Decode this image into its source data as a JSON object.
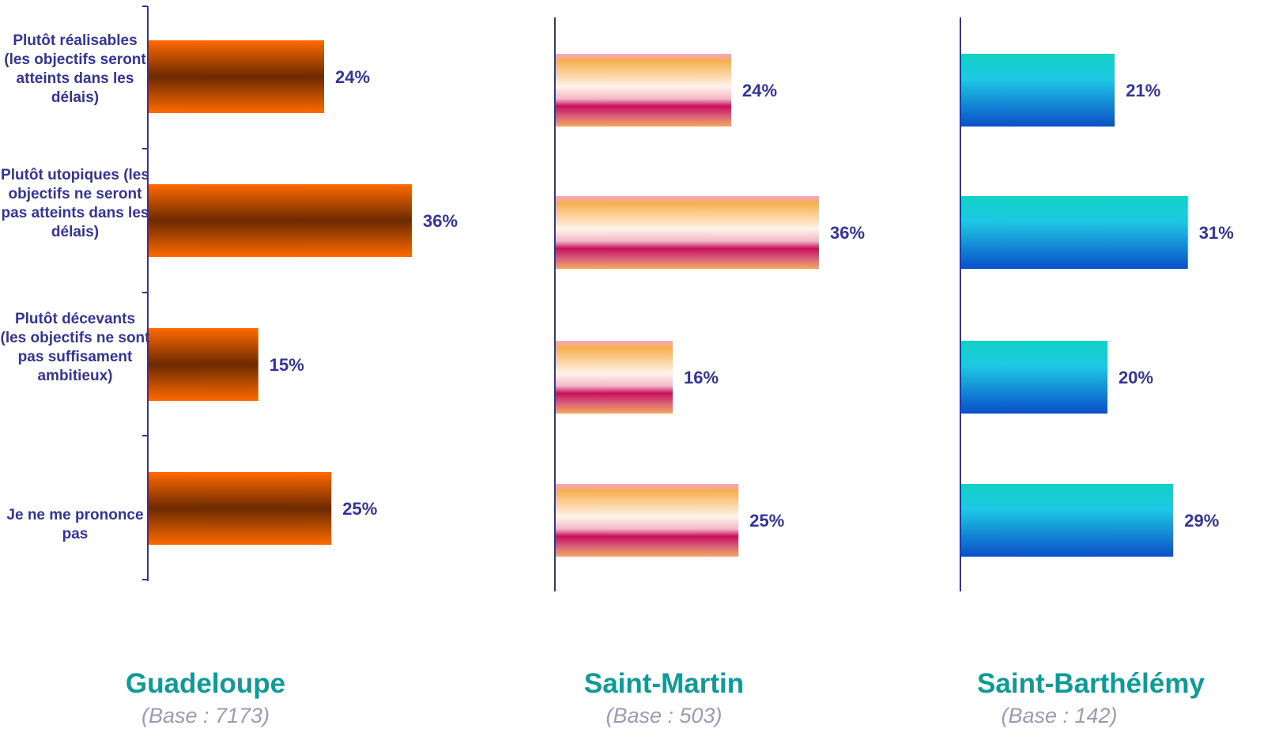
{
  "chart_data": [
    {
      "type": "bar",
      "orientation": "horizontal",
      "title": "Guadeloupe",
      "subtitle": "(Base : 7173)",
      "categories": [
        "Plutôt réalisables (les objectifs seront atteints dans les délais)",
        "Plutôt utopiques (les objectifs ne seront pas atteints dans les délais)",
        "Plutôt décevants (les objectifs ne sont pas suffisament ambitieux)",
        "Je ne me prononce pas"
      ],
      "values": [
        24,
        36,
        15,
        25
      ],
      "value_labels": [
        "24%",
        "36%",
        "15%",
        "25%"
      ],
      "xlim": [
        0,
        100
      ],
      "grid": false,
      "bar_colors": [
        "#ff6a00",
        "#6b2a00"
      ]
    },
    {
      "type": "bar",
      "orientation": "horizontal",
      "title": "Saint-Martin",
      "subtitle": "(Base : 503)",
      "values": [
        24,
        36,
        16,
        25
      ],
      "value_labels": [
        "24%",
        "36%",
        "16%",
        "25%"
      ],
      "xlim": [
        0,
        100
      ],
      "grid": false,
      "bar_colors": [
        "#f4a6c6",
        "#f7b04e",
        "#fff3ea",
        "#c8105a"
      ]
    },
    {
      "type": "bar",
      "orientation": "horizontal",
      "title": "Saint-Barthélémy",
      "subtitle": "(Base : 142)",
      "values": [
        21,
        31,
        20,
        29
      ],
      "value_labels": [
        "21%",
        "31%",
        "20%",
        "29%"
      ],
      "xlim": [
        0,
        100
      ],
      "grid": false,
      "bar_colors": [
        "#11d2c4",
        "#1ec8e4",
        "#0a4fc8"
      ]
    }
  ],
  "colors": {
    "axis": "#333399",
    "label_text": "#333399",
    "title": "#0e9a96",
    "base_text": "#9a9ab8"
  }
}
